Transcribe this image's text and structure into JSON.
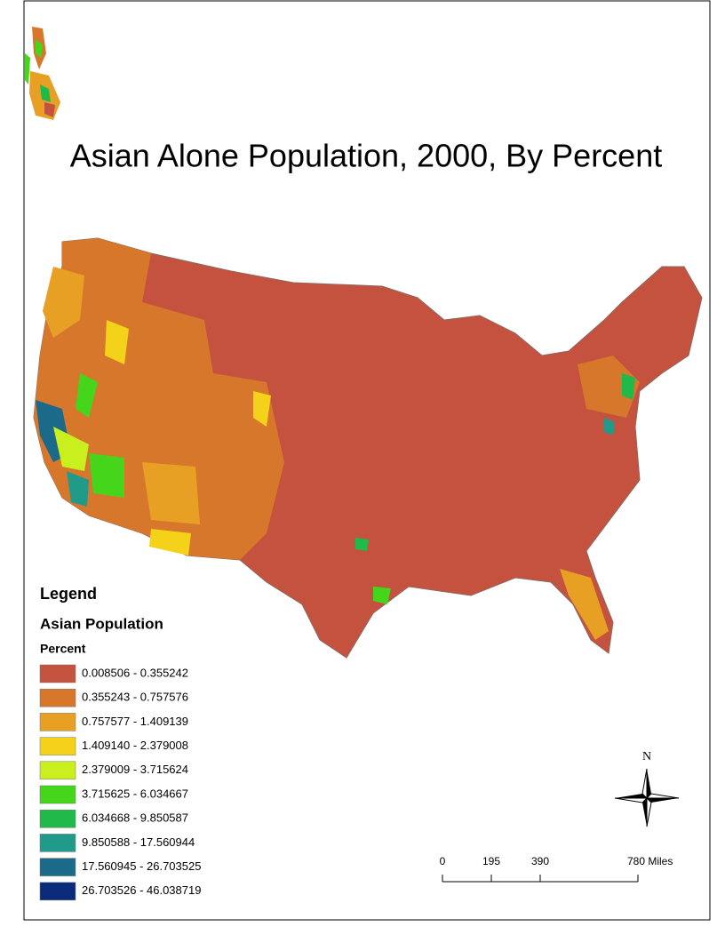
{
  "title": "Asian Alone Population, 2000, By Percent",
  "legend": {
    "heading": "Legend",
    "layer": "Asian Population",
    "field": "Percent",
    "classes": [
      {
        "label": "0.008506 - 0.355242",
        "color": "#c4523f"
      },
      {
        "label": "0.355243 - 0.757576",
        "color": "#d7772c"
      },
      {
        "label": "0.757577 - 1.409139",
        "color": "#e8a024"
      },
      {
        "label": "1.409140 - 2.379008",
        "color": "#f5d21a"
      },
      {
        "label": "2.379009 - 3.715624",
        "color": "#c9f01e"
      },
      {
        "label": "3.715625 - 6.034667",
        "color": "#45d61c"
      },
      {
        "label": "6.034668 - 9.850587",
        "color": "#1fba4a"
      },
      {
        "label": "9.850588 - 17.560944",
        "color": "#229a8a"
      },
      {
        "label": "17.560945 - 26.703525",
        "color": "#1c6a8a"
      },
      {
        "label": "26.703526 - 46.038719",
        "color": "#0b2a7a"
      }
    ]
  },
  "north_arrow": "N",
  "scale_bar": {
    "ticks": [
      {
        "value": 0,
        "label": "0"
      },
      {
        "value": 195,
        "label": "195"
      },
      {
        "value": 390,
        "label": "390"
      },
      {
        "value": 780,
        "label": "780 Miles"
      }
    ]
  }
}
